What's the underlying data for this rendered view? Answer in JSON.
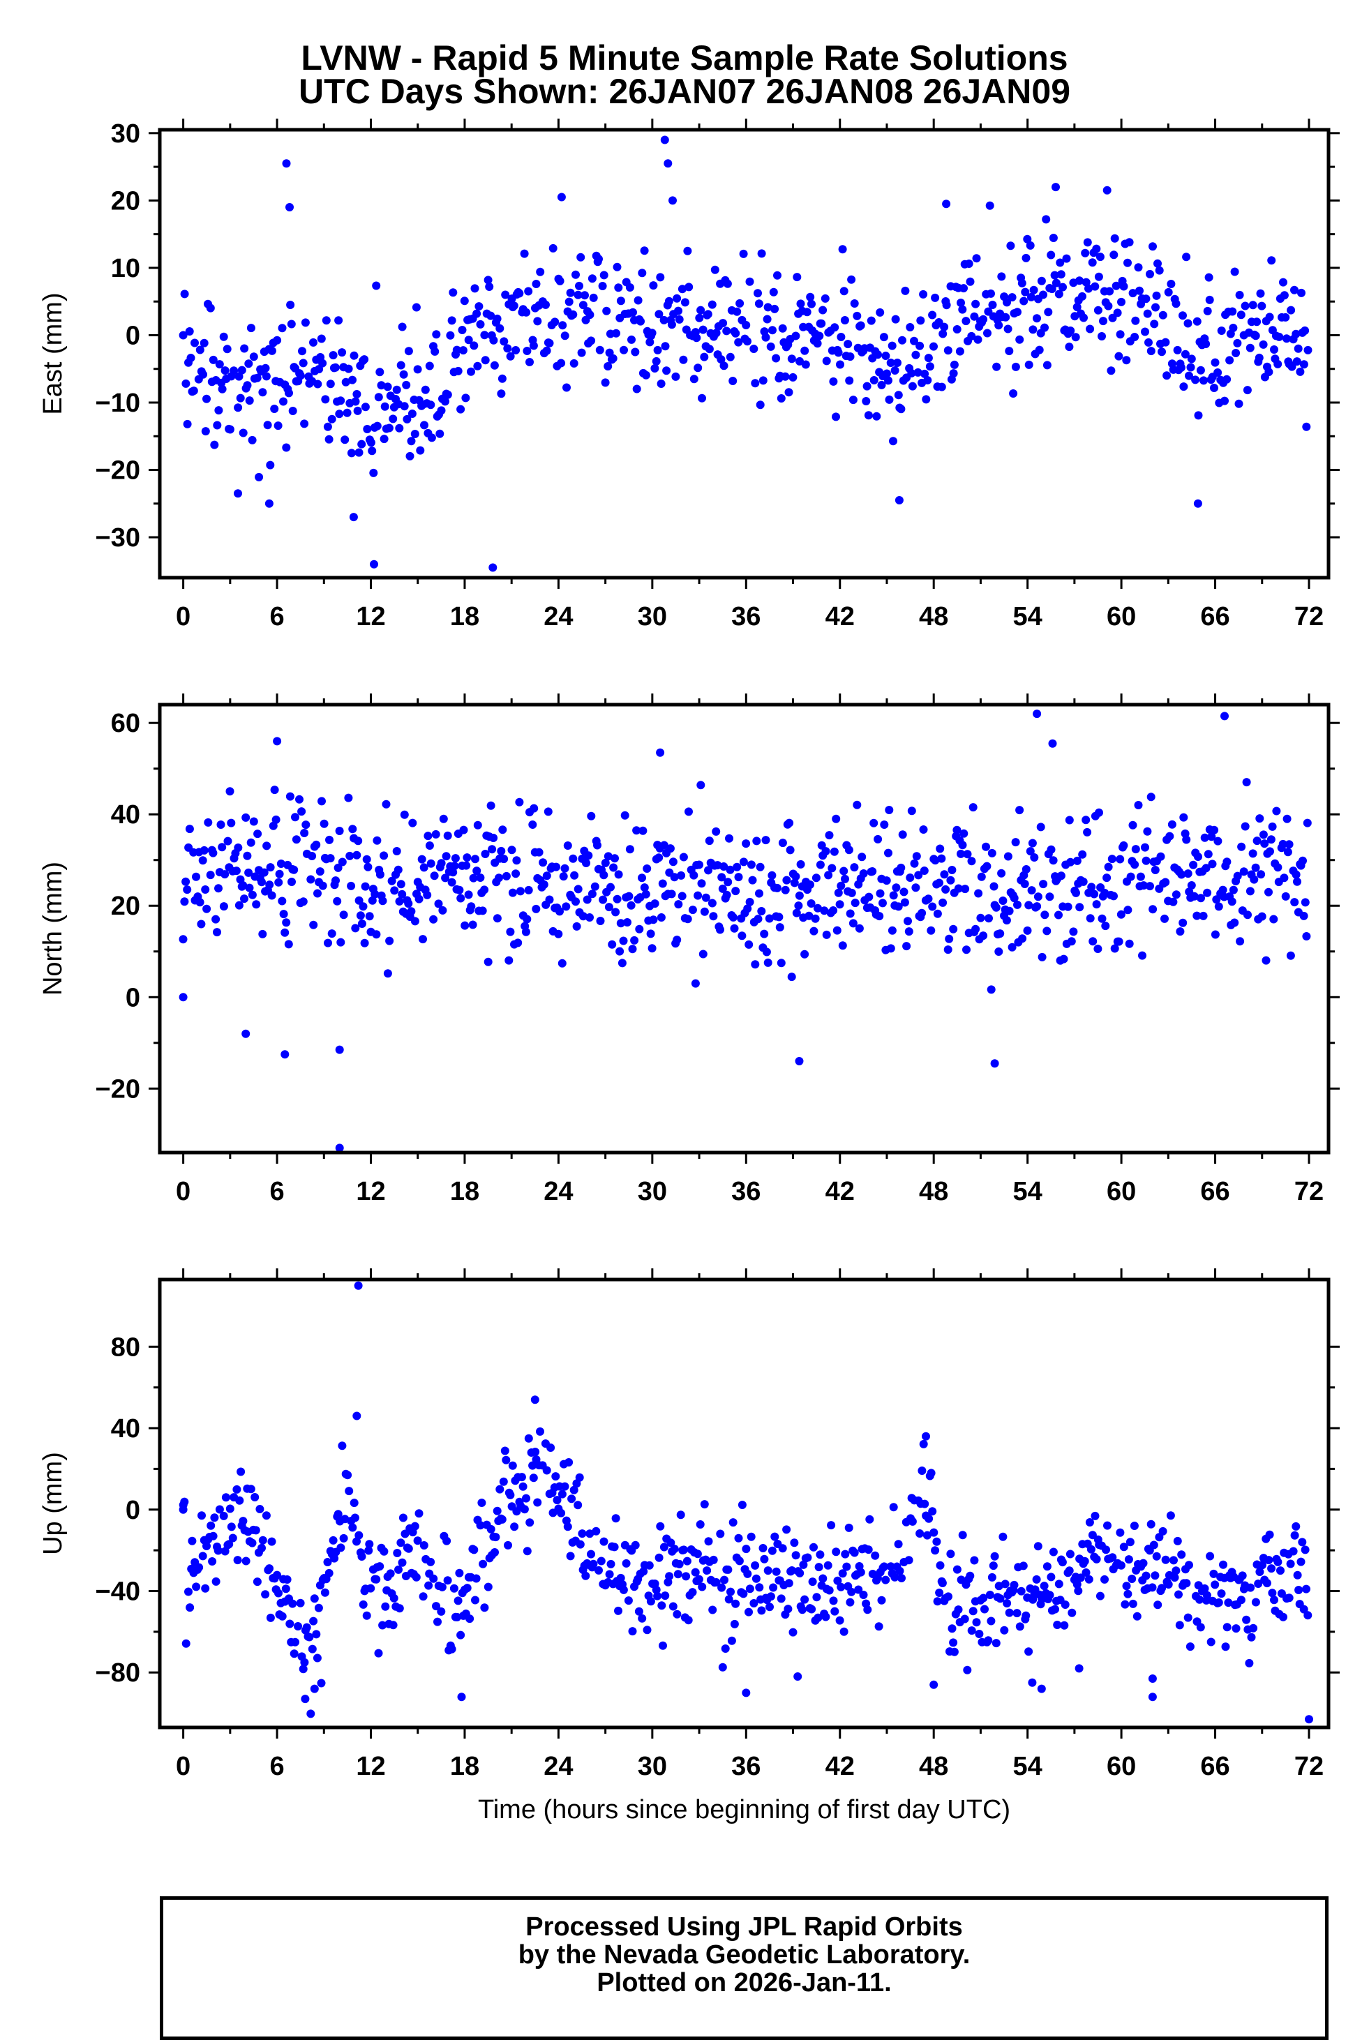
{
  "title_line1": "LVNW - Rapid 5 Minute Sample Rate Solutions",
  "title_line2": "UTC Days Shown:  26JAN07 26JAN08 26JAN09",
  "footer": {
    "line1": "Processed Using JPL Rapid Orbits",
    "line2": "by the Nevada Geodetic Laboratory.",
    "line3": "Plotted on 2026-Jan-11."
  },
  "colors": {
    "points": "#0000ff",
    "axes": "#000000"
  },
  "chart_data": [
    {
      "type": "scatter",
      "ylabel": "East (mm)",
      "xlabel": "",
      "xlim": [
        -1.5,
        73.25
      ],
      "ylim": [
        -36,
        30.5
      ],
      "xticks": [
        0,
        6,
        12,
        18,
        24,
        30,
        36,
        42,
        48,
        54,
        60,
        66,
        72
      ],
      "yticks": [
        -30,
        -20,
        -10,
        0,
        10,
        20,
        30
      ],
      "trend": [
        [
          0,
          -6
        ],
        [
          4,
          -8
        ],
        [
          8,
          -4
        ],
        [
          12,
          -12
        ],
        [
          16,
          -8
        ],
        [
          18,
          0
        ],
        [
          22,
          5
        ],
        [
          26,
          2
        ],
        [
          30,
          2
        ],
        [
          34,
          1
        ],
        [
          38,
          0
        ],
        [
          42,
          -1
        ],
        [
          46,
          -6
        ],
        [
          50,
          5
        ],
        [
          54,
          5
        ],
        [
          58,
          6
        ],
        [
          62,
          5
        ],
        [
          65,
          -5
        ],
        [
          68,
          1
        ],
        [
          72,
          1
        ]
      ],
      "noise_mm": 5,
      "outliers": [
        [
          0,
          0
        ],
        [
          6.6,
          25.5
        ],
        [
          6.8,
          19
        ],
        [
          12.2,
          -34
        ],
        [
          19.8,
          -34.5
        ],
        [
          24.2,
          20.5
        ],
        [
          30.8,
          29
        ],
        [
          31,
          25.5
        ],
        [
          31.3,
          20
        ],
        [
          45.8,
          -24.5
        ],
        [
          48.8,
          19.5
        ],
        [
          55.8,
          22
        ],
        [
          64.9,
          -25
        ],
        [
          10.9,
          -27
        ],
        [
          3.5,
          -23.5
        ],
        [
          5.5,
          -25
        ]
      ]
    },
    {
      "type": "scatter",
      "ylabel": "North (mm)",
      "xlabel": "",
      "xlim": [
        -1.5,
        73.25
      ],
      "ylim": [
        -34,
        64
      ],
      "xticks": [
        0,
        6,
        12,
        18,
        24,
        30,
        36,
        42,
        48,
        54,
        60,
        66,
        72
      ],
      "yticks": [
        -20,
        0,
        20,
        40,
        60
      ],
      "trend": [
        [
          0,
          28
        ],
        [
          6,
          30
        ],
        [
          12,
          22
        ],
        [
          18,
          27
        ],
        [
          24,
          25
        ],
        [
          30,
          23
        ],
        [
          36,
          24
        ],
        [
          42,
          23
        ],
        [
          48,
          22
        ],
        [
          54,
          21
        ],
        [
          60,
          25
        ],
        [
          66,
          28
        ],
        [
          72,
          24
        ]
      ],
      "noise_mm": 8,
      "outliers": [
        [
          0,
          0
        ],
        [
          10,
          -33
        ],
        [
          39.4,
          -14
        ],
        [
          51.9,
          -14.5
        ],
        [
          54.6,
          62
        ],
        [
          66.6,
          61.5
        ],
        [
          6,
          56
        ],
        [
          6.5,
          -12.5
        ],
        [
          4,
          -8
        ],
        [
          10,
          -11.5
        ],
        [
          30.5,
          53.5
        ],
        [
          55.6,
          55.5
        ]
      ]
    },
    {
      "type": "scatter",
      "ylabel": "Up (mm)",
      "xlabel": "Time (hours since beginning of first day UTC)",
      "xlim": [
        -1.5,
        73.25
      ],
      "ylim": [
        -107,
        113
      ],
      "xticks": [
        0,
        6,
        12,
        18,
        24,
        30,
        36,
        42,
        48,
        54,
        60,
        66,
        72
      ],
      "yticks": [
        -80,
        -40,
        0,
        40,
        80
      ],
      "trend": [
        [
          0,
          -35
        ],
        [
          4,
          0
        ],
        [
          6,
          -45
        ],
        [
          8,
          -70
        ],
        [
          9,
          -40
        ],
        [
          10.5,
          15
        ],
        [
          11.5,
          -40
        ],
        [
          13,
          -30
        ],
        [
          15,
          -25
        ],
        [
          17.5,
          -55
        ],
        [
          19,
          -25
        ],
        [
          21,
          5
        ],
        [
          23,
          25
        ],
        [
          25,
          -10
        ],
        [
          27,
          -30
        ],
        [
          30,
          -35
        ],
        [
          34,
          -28
        ],
        [
          38,
          -35
        ],
        [
          42,
          -40
        ],
        [
          46,
          -25
        ],
        [
          47.5,
          15
        ],
        [
          48.5,
          -50
        ],
        [
          52,
          -45
        ],
        [
          55,
          -40
        ],
        [
          58,
          -25
        ],
        [
          61,
          -25
        ],
        [
          64,
          -40
        ],
        [
          68,
          -45
        ],
        [
          70,
          -35
        ],
        [
          72,
          -40
        ]
      ],
      "noise_mm": 13,
      "outliers": [
        [
          0,
          0
        ],
        [
          11.2,
          110
        ],
        [
          11.1,
          46
        ],
        [
          22.5,
          54
        ],
        [
          47.5,
          36
        ],
        [
          72,
          -103
        ],
        [
          7.8,
          -93
        ],
        [
          17.8,
          -92
        ],
        [
          62,
          -92
        ],
        [
          62,
          -83
        ],
        [
          36,
          -90
        ],
        [
          39.3,
          -82
        ],
        [
          48,
          -86
        ],
        [
          54.3,
          -85
        ],
        [
          54.9,
          -88
        ],
        [
          57.3,
          -78
        ],
        [
          8.4,
          -88
        ]
      ]
    }
  ]
}
